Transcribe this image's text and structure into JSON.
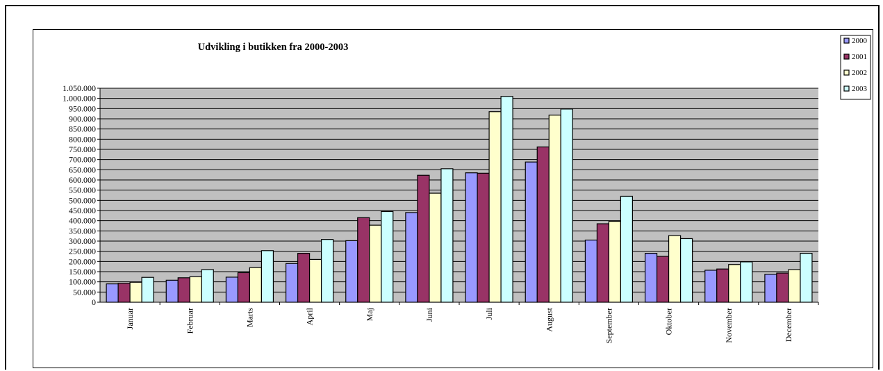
{
  "chart_data": {
    "type": "bar",
    "title": "Udvikling i butikken fra 2000-2003",
    "xlabel": "",
    "ylabel": "",
    "ylim": [
      0,
      1050000
    ],
    "ytick_step": 50000,
    "yticks": [
      "0",
      "50.000",
      "100.000",
      "150.000",
      "200.000",
      "250.000",
      "300.000",
      "350.000",
      "400.000",
      "450.000",
      "500.000",
      "550.000",
      "600.000",
      "650.000",
      "700.000",
      "750.000",
      "800.000",
      "850.000",
      "900.000",
      "950.000",
      "1.000.000",
      "1.050.000"
    ],
    "categories": [
      "Januar",
      "Februar",
      "Marts",
      "April",
      "Maj",
      "Juni",
      "Juli",
      "August",
      "September",
      "Oktober",
      "November",
      "December"
    ],
    "series": [
      {
        "name": "2000",
        "color": "#9999FF",
        "values": [
          90000,
          108000,
          123000,
          190000,
          302000,
          440000,
          635000,
          688000,
          305000,
          240000,
          157000,
          137000
        ]
      },
      {
        "name": "2001",
        "color": "#993366",
        "values": [
          93000,
          120000,
          145000,
          240000,
          415000,
          623000,
          633000,
          762000,
          385000,
          225000,
          163000,
          143000
        ]
      },
      {
        "name": "2002",
        "color": "#FFFFCC",
        "values": [
          98000,
          125000,
          170000,
          210000,
          378000,
          535000,
          935000,
          918000,
          397000,
          327000,
          185000,
          160000
        ]
      },
      {
        "name": "2003",
        "color": "#CCFFFF",
        "values": [
          122000,
          160000,
          253000,
          308000,
          445000,
          655000,
          1010000,
          948000,
          520000,
          312000,
          198000,
          240000
        ]
      }
    ],
    "grid": true,
    "plot_background": "#C0C0C0",
    "legend_position": "top-right"
  }
}
